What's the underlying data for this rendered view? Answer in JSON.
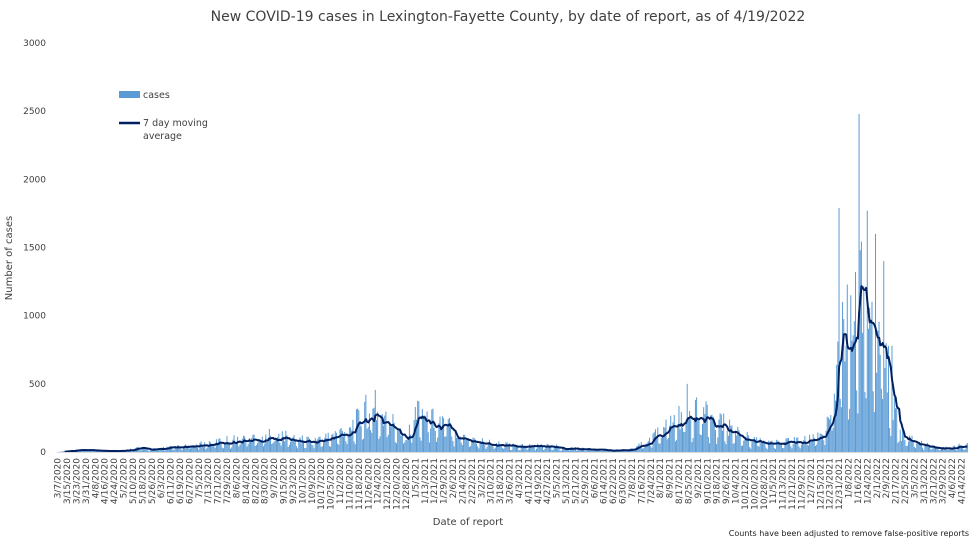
{
  "chart_data": {
    "type": "bar",
    "title": "New COVID-19 cases in Lexington-Fayette County, by date of report, as of 4/19/2022",
    "xlabel": "Date of report",
    "ylabel": "Number of cases",
    "ylim": [
      0,
      3000
    ],
    "yticks": [
      0,
      500,
      1000,
      1500,
      2000,
      2500,
      3000
    ],
    "x_range": [
      "3/7/2020",
      "4/19/2022"
    ],
    "grid": false,
    "legend_placement": "top-left",
    "footnote": "Counts have been adjusted to remove false-positive reports",
    "colors": {
      "bars": "#5b9bd5",
      "line": "#002060"
    },
    "xtick_labels": [
      "3/7/2020",
      "3/15/2020",
      "3/23/2020",
      "3/31/2020",
      "4/8/2020",
      "4/16/2020",
      "4/24/2020",
      "5/2/2020",
      "5/10/2020",
      "5/18/2020",
      "5/26/2020",
      "6/3/2020",
      "6/11/2020",
      "6/19/2020",
      "6/27/2020",
      "7/5/2020",
      "7/13/2020",
      "7/21/2020",
      "7/29/2020",
      "8/6/2020",
      "8/14/2020",
      "8/22/2020",
      "8/30/2020",
      "9/7/2020",
      "9/15/2020",
      "9/23/2020",
      "10/1/2020",
      "10/9/2020",
      "10/17/2020",
      "10/25/2020",
      "11/2/2020",
      "11/10/2020",
      "11/18/2020",
      "11/26/2020",
      "12/4/2020",
      "12/12/2020",
      "12/20/2020",
      "12/28/2020",
      "1/5/2021",
      "1/13/2021",
      "1/21/2021",
      "1/29/2021",
      "2/6/2021",
      "2/14/2021",
      "2/22/2021",
      "3/2/2021",
      "3/10/2021",
      "3/18/2021",
      "3/26/2021",
      "4/3/2021",
      "4/11/2021",
      "4/19/2021",
      "4/27/2021",
      "5/5/2021",
      "5/13/2021",
      "5/21/2021",
      "5/29/2021",
      "6/6/2021",
      "6/14/2021",
      "6/22/2021",
      "6/30/2021",
      "7/8/2021",
      "7/16/2021",
      "7/24/2021",
      "8/1/2021",
      "8/9/2021",
      "8/17/2021",
      "8/25/2021",
      "9/2/2021",
      "9/10/2021",
      "9/18/2021",
      "9/26/2021",
      "10/4/2021",
      "10/12/2021",
      "10/20/2021",
      "10/28/2021",
      "11/5/2021",
      "11/13/2021",
      "11/21/2021",
      "11/29/2021",
      "12/7/2021",
      "12/15/2021",
      "12/23/2021",
      "12/31/2021",
      "1/8/2022",
      "1/16/2022",
      "1/24/2022",
      "2/1/2022",
      "2/9/2022",
      "2/17/2022",
      "2/25/2022",
      "3/5/2022",
      "3/13/2022",
      "3/21/2022",
      "3/29/2022",
      "4/6/2022",
      "4/14/2022"
    ],
    "series": [
      {
        "name": "cases",
        "type": "bar",
        "note": "daily values, one per date from 3/7/2020 to 4/19/2022; approximated by linear interpolation between the anchor points below",
        "anchors": [
          [
            "3/7/2020",
            0
          ],
          [
            "3/16/2020",
            8
          ],
          [
            "3/25/2020",
            15
          ],
          [
            "4/5/2020",
            12
          ],
          [
            "4/20/2020",
            8
          ],
          [
            "5/5/2020",
            12
          ],
          [
            "5/15/2020",
            30
          ],
          [
            "5/25/2020",
            18
          ],
          [
            "6/10/2020",
            30
          ],
          [
            "6/25/2020",
            38
          ],
          [
            "7/10/2020",
            55
          ],
          [
            "7/25/2020",
            75
          ],
          [
            "8/10/2020",
            90
          ],
          [
            "8/25/2020",
            100
          ],
          [
            "9/10/2020",
            120
          ],
          [
            "9/20/2020",
            95
          ],
          [
            "10/1/2020",
            80
          ],
          [
            "10/15/2020",
            85
          ],
          [
            "10/28/2020",
            110
          ],
          [
            "11/10/2020",
            170
          ],
          [
            "11/22/2020",
            240
          ],
          [
            "12/2/2020",
            270
          ],
          [
            "12/12/2020",
            220
          ],
          [
            "12/22/2020",
            170
          ],
          [
            "12/30/2020",
            120
          ],
          [
            "1/8/2021",
            300
          ],
          [
            "1/18/2021",
            220
          ],
          [
            "1/30/2021",
            200
          ],
          [
            "2/10/2021",
            130
          ],
          [
            "2/25/2021",
            80
          ],
          [
            "3/15/2021",
            55
          ],
          [
            "3/30/2021",
            40
          ],
          [
            "4/15/2021",
            45
          ],
          [
            "4/30/2021",
            40
          ],
          [
            "5/15/2021",
            30
          ],
          [
            "6/1/2021",
            20
          ],
          [
            "6/20/2021",
            12
          ],
          [
            "7/5/2021",
            15
          ],
          [
            "7/20/2021",
            60
          ],
          [
            "8/5/2021",
            160
          ],
          [
            "8/20/2021",
            240
          ],
          [
            "9/1/2021",
            260
          ],
          [
            "9/10/2021",
            240
          ],
          [
            "9/25/2021",
            180
          ],
          [
            "10/10/2021",
            110
          ],
          [
            "10/25/2021",
            70
          ],
          [
            "11/10/2021",
            60
          ],
          [
            "11/25/2021",
            75
          ],
          [
            "12/10/2021",
            100
          ],
          [
            "12/20/2021",
            150
          ],
          [
            "12/27/2021",
            320
          ],
          [
            "1/1/2022",
            750
          ],
          [
            "1/6/2022",
            880
          ],
          [
            "1/11/2022",
            600
          ],
          [
            "1/15/2022",
            1000
          ],
          [
            "1/20/2022",
            1100
          ],
          [
            "1/27/2022",
            900
          ],
          [
            "2/3/2022",
            850
          ],
          [
            "2/10/2022",
            600
          ],
          [
            "2/15/2022",
            300
          ],
          [
            "2/22/2022",
            120
          ],
          [
            "3/5/2022",
            70
          ],
          [
            "3/20/2022",
            35
          ],
          [
            "4/5/2022",
            25
          ],
          [
            "4/19/2022",
            55
          ]
        ],
        "spikes": [
          [
            "12/31/2021",
            1790
          ],
          [
            "1/3/2022",
            1100
          ],
          [
            "1/10/2022",
            1150
          ],
          [
            "1/14/2022",
            1320
          ],
          [
            "1/17/2022",
            2480
          ],
          [
            "1/18/2022",
            1480
          ],
          [
            "1/24/2022",
            1770
          ],
          [
            "1/31/2022",
            1600
          ],
          [
            "2/7/2022",
            1400
          ],
          [
            "2/14/2022",
            780
          ],
          [
            "11/24/2020",
            420
          ],
          [
            "12/2/2020",
            455
          ],
          [
            "8/24/2021",
            500
          ],
          [
            "1/5/2021",
            330
          ]
        ]
      },
      {
        "name": "7 day moving average",
        "type": "line",
        "note": "7-day moving average of daily cases"
      }
    ],
    "legend": [
      {
        "label": "cases",
        "kind": "bar"
      },
      {
        "label": "7 day moving average",
        "kind": "line"
      }
    ]
  }
}
